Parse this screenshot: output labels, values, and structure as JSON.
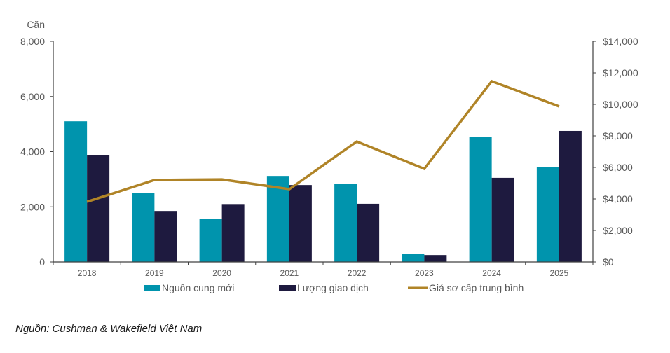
{
  "chart_data": {
    "type": "bar",
    "title": "",
    "categories": [
      "2018",
      "2019",
      "2020",
      "2021",
      "2022",
      "2023",
      "2024",
      "2025"
    ],
    "series": [
      {
        "name": "Nguồn cung mới",
        "type": "bar",
        "axis": "left",
        "color": "#0094AD",
        "values": [
          5100,
          2490,
          1550,
          3120,
          2820,
          280,
          4540,
          3450
        ]
      },
      {
        "name": "Lượng giao dịch",
        "type": "bar",
        "axis": "left",
        "color": "#1E1A3F",
        "values": [
          3880,
          1850,
          2100,
          2790,
          2110,
          250,
          3050,
          4750
        ]
      },
      {
        "name": "Giá sơ cấp trung bình",
        "type": "line",
        "axis": "right",
        "color": "#B08427",
        "values": [
          3820,
          5200,
          5240,
          4620,
          7640,
          5910,
          11470,
          9870
        ]
      }
    ],
    "ylabel": "Căn",
    "ylim": [
      0,
      8000
    ],
    "yticks": [
      "0",
      "2,000",
      "4,000",
      "6,000",
      "8,000"
    ],
    "y2lim": [
      0,
      14000
    ],
    "y2ticks": [
      "$0",
      "$2,000",
      "$4,000",
      "$6,000",
      "$8,000",
      "$10,000",
      "$12,000",
      "$14,000"
    ],
    "grid": false,
    "legend": "bottom"
  },
  "source": "Nguồn: Cushman & Wakefield Việt Nam"
}
